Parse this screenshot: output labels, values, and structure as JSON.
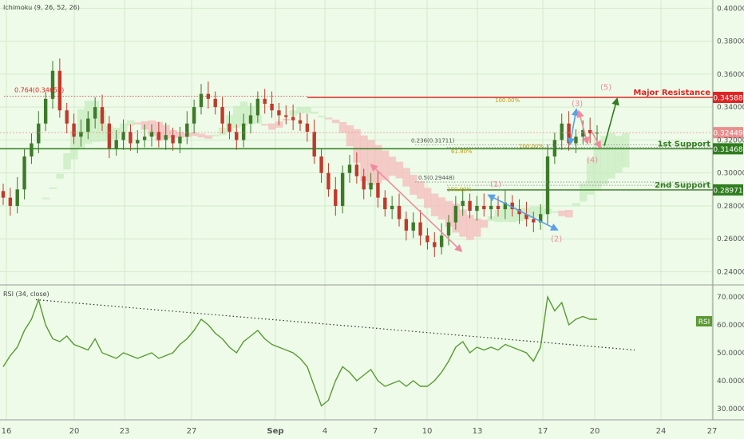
{
  "main_indicator_label": "Ichimoku (9, 26, 52, 26)",
  "rsi_indicator_label": "RSI (34, close)",
  "rsi_tag": "RSI",
  "colors": {
    "background": "#edfbe8",
    "candle_up": "#3d7a2a",
    "candle_down": "#c0392b",
    "cloud_bearish": "#f4bcbc",
    "cloud_bullish": "#c8ecc0",
    "rsi_line": "#5b9a33",
    "resistance": "#e02424",
    "support": "#2f7d1e",
    "fib_text": "#c49a14",
    "wave_pink": "#f08aa0",
    "wave_blue": "#5aa0e8",
    "current_price": "#e98e8e"
  },
  "chart_data": [
    {
      "type": "candlestick",
      "x_ticks": [
        "16",
        "20",
        "23",
        "27",
        "Sep",
        "4",
        "7",
        "10",
        "13",
        "17",
        "20",
        "24",
        "27"
      ],
      "y_ticks": [
        "0.40000",
        "0.38000",
        "0.36000",
        "0.34000",
        "0.32000",
        "0.30000",
        "0.28000",
        "0.26000",
        "0.24000"
      ],
      "ylim": [
        0.232,
        0.405
      ],
      "close_series": [
        0.285,
        0.28,
        0.29,
        0.31,
        0.318,
        0.33,
        0.345,
        0.362,
        0.338,
        0.33,
        0.322,
        0.325,
        0.333,
        0.34,
        0.33,
        0.315,
        0.32,
        0.325,
        0.318,
        0.32,
        0.322,
        0.325,
        0.32,
        0.323,
        0.318,
        0.322,
        0.33,
        0.34,
        0.348,
        0.345,
        0.34,
        0.33,
        0.325,
        0.32,
        0.33,
        0.335,
        0.345,
        0.342,
        0.338,
        0.335,
        0.334,
        0.332,
        0.33,
        0.325,
        0.31,
        0.3,
        0.29,
        0.28,
        0.3,
        0.305,
        0.298,
        0.29,
        0.294,
        0.285,
        0.278,
        0.28,
        0.272,
        0.265,
        0.27,
        0.262,
        0.258,
        0.255,
        0.262,
        0.27,
        0.28,
        0.283,
        0.277,
        0.28,
        0.278,
        0.28,
        0.278,
        0.282,
        0.278,
        0.275,
        0.272,
        0.27,
        0.275,
        0.31,
        0.32,
        0.33,
        0.318,
        0.322,
        0.326,
        0.324,
        0.3245
      ],
      "annotations": [
        {
          "label": "0.764(0.34655)",
          "price": 0.34655
        },
        {
          "label": "100.00%",
          "price": 0.34655
        },
        {
          "label": "0.236(0.31711)",
          "price": 0.31711
        },
        {
          "label": "100.00%",
          "price": 0.31711
        },
        {
          "label": "61.80%",
          "price": 0.3155
        },
        {
          "label": "0.5(0.29448)",
          "price": 0.29448
        },
        {
          "label": "100.00%",
          "price": 0.2925
        },
        {
          "label": "(1)"
        },
        {
          "label": "(2)"
        },
        {
          "label": "(3)"
        },
        {
          "label": "(4)"
        },
        {
          "label": "(5)"
        }
      ],
      "levels": [
        {
          "label": "Major Resistance",
          "value": "0.34588",
          "price": 0.34588,
          "role": "resistance"
        },
        {
          "label": "1st Support",
          "value": "0.31468",
          "price": 0.31468,
          "role": "support"
        },
        {
          "label": "2nd Support",
          "value": "0.28971",
          "price": 0.28971,
          "role": "support"
        },
        {
          "label": "",
          "value": "0.32449",
          "price": 0.32449,
          "role": "current"
        }
      ]
    },
    {
      "type": "line",
      "name": "RSI (34, close)",
      "y_ticks": [
        "70.0000",
        "60.0000",
        "50.0000",
        "40.0000",
        "30.0000"
      ],
      "ylim": [
        26,
        74
      ],
      "values": [
        45,
        49,
        52,
        58,
        62,
        69,
        60,
        55,
        54,
        56,
        53,
        52,
        51,
        55,
        50,
        49,
        48,
        50,
        49,
        48,
        49,
        50,
        48,
        49,
        50,
        53,
        55,
        58,
        62,
        60,
        57,
        55,
        52,
        50,
        54,
        56,
        58,
        55,
        53,
        52,
        51,
        50,
        48,
        45,
        38,
        31,
        33,
        40,
        45,
        43,
        40,
        42,
        44,
        40,
        38,
        39,
        40,
        38,
        40,
        38,
        38,
        40,
        43,
        47,
        52,
        54,
        50,
        52,
        51,
        52,
        51,
        53,
        52,
        51,
        50,
        47,
        52,
        70,
        65,
        68,
        60,
        62,
        63,
        62,
        62
      ],
      "trendline": [
        69,
        51.5
      ]
    }
  ]
}
